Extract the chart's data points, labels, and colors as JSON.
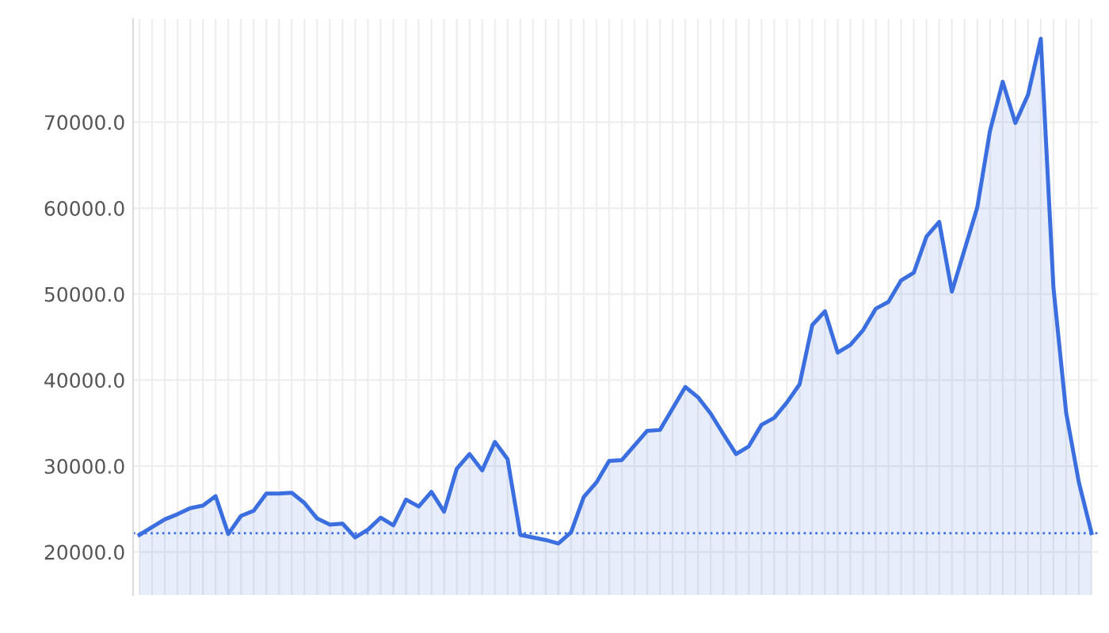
{
  "chart_data": {
    "type": "area",
    "color": "#3b6fe0",
    "categories": [
      null,
      null,
      null,
      null,
      null,
      null,
      null,
      null,
      null,
      null,
      null,
      null,
      null,
      null,
      null,
      null,
      null,
      null,
      null,
      null,
      null,
      null,
      null,
      null,
      null,
      null,
      null,
      null,
      null,
      null,
      null,
      null,
      null,
      null,
      null,
      null,
      null,
      null,
      null,
      null,
      null,
      null,
      null,
      null,
      null,
      null,
      null,
      null,
      null,
      null,
      null,
      null,
      null,
      null,
      null,
      null,
      null,
      null,
      null,
      null,
      null,
      null,
      null,
      null,
      null,
      null,
      null,
      null,
      null,
      null,
      null,
      null,
      null,
      null,
      null,
      null
    ],
    "values": [
      22000,
      22900,
      23800,
      24400,
      25100,
      25400,
      26500,
      22100,
      24200,
      24800,
      26800,
      26800,
      26900,
      25700,
      23900,
      23200,
      23300,
      21700,
      22600,
      24000,
      23100,
      26100,
      25300,
      27000,
      24700,
      29700,
      31400,
      29500,
      32800,
      30800,
      22000,
      21700,
      21400,
      21000,
      22300,
      26400,
      28100,
      30600,
      30700,
      32400,
      34100,
      34200,
      36700,
      39200,
      38000,
      36100,
      33700,
      31400,
      32300,
      34800,
      35600,
      37400,
      39500,
      46400,
      48000,
      43200,
      44100,
      45800,
      48300,
      49100,
      51600,
      52500,
      56700,
      58400,
      50300,
      55200,
      60100,
      69000,
      74700,
      69900,
      73200,
      79700,
      50700,
      36200,
      28100,
      22200
    ],
    "ylim": [
      15000,
      82000
    ],
    "yticks": [
      {
        "value": 20000,
        "label": "20000.0"
      },
      {
        "value": 30000,
        "label": "30000.0"
      },
      {
        "value": 40000,
        "label": "40000.0"
      },
      {
        "value": 50000,
        "label": "50000.0"
      },
      {
        "value": 60000,
        "label": "60000.0"
      },
      {
        "value": 70000,
        "label": "70000.0"
      }
    ],
    "grid": true,
    "tick_labels": "y",
    "ref_lines": [
      {
        "axis": "y",
        "value": 22200,
        "color": "#3b6fe0",
        "line_style": "dotted"
      }
    ]
  }
}
